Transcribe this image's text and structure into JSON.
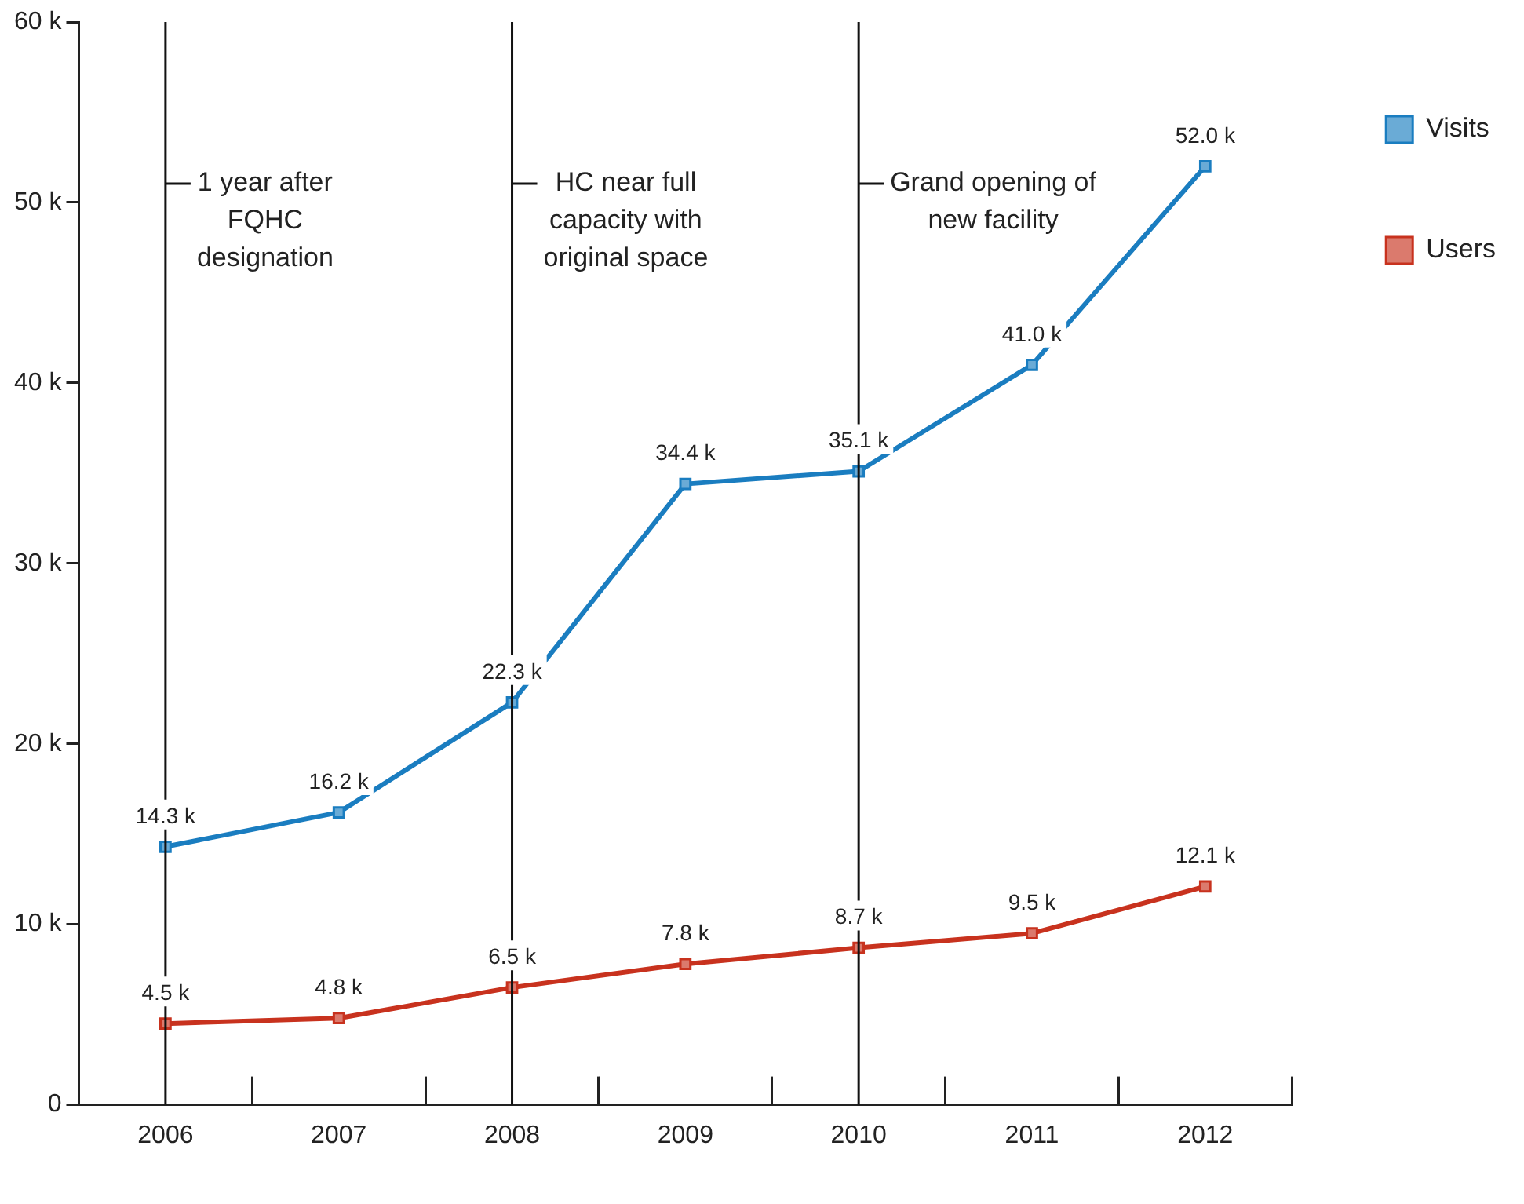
{
  "chart_data": {
    "type": "line",
    "categories": [
      "2006",
      "2007",
      "2008",
      "2009",
      "2010",
      "2011",
      "2012"
    ],
    "series": [
      {
        "name": "Visits",
        "color": "#1a7dc0",
        "values": [
          14.3,
          16.2,
          22.3,
          34.4,
          35.1,
          41.0,
          52.0
        ],
        "value_labels": [
          "14.3 k",
          "16.2 k",
          "22.3 k",
          "34.4 k",
          "35.1 k",
          "41.0 k",
          "52.0 k"
        ]
      },
      {
        "name": "Users",
        "color": "#c8321e",
        "values": [
          4.5,
          4.8,
          6.5,
          7.8,
          8.7,
          9.5,
          12.1
        ],
        "value_labels": [
          "4.5 k",
          "4.8 k",
          "6.5 k",
          "7.8 k",
          "8.7 k",
          "9.5 k",
          "12.1 k"
        ]
      }
    ],
    "ylim": [
      0,
      60
    ],
    "yticks": [
      0,
      {
        "value": 10,
        "label": "10 k"
      },
      {
        "value": 20,
        "label": "20 k"
      },
      {
        "value": 30,
        "label": "30 k"
      },
      {
        "value": 40,
        "label": "40 k"
      },
      {
        "value": 50,
        "label": "50 k"
      },
      {
        "value": 60,
        "label": "60 k"
      }
    ],
    "ref_lines": [
      {
        "axis": "x",
        "value": "2006",
        "label": "1 year after FQHC designation"
      },
      {
        "axis": "x",
        "value": "2008",
        "label": "HC near full capacity with original space"
      },
      {
        "axis": "x",
        "value": "2010",
        "label": "Grand opening of new facility"
      }
    ],
    "grid": false,
    "legend": "right",
    "marker": "square",
    "line_style": "solid"
  }
}
